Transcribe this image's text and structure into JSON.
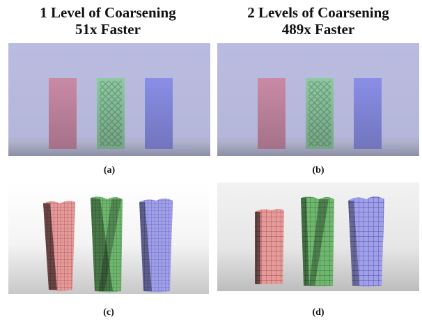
{
  "columns": [
    {
      "heading_line1": "1 Level of Coarsening",
      "heading_line2": "51x Faster"
    },
    {
      "heading_line1": "2 Levels of Coarsening",
      "heading_line2": "489x Faster"
    }
  ],
  "captions": {
    "a": "(a)",
    "b": "(b)",
    "c": "(c)",
    "d": "(d)"
  },
  "colors": {
    "backdrop": "#b9bade",
    "floor": "#aeb0ca",
    "pink_block": "#c98aa6",
    "green_block": "#8ec9a2",
    "blue_block": "#8a8ee6",
    "mesh_red": "#e79a9a",
    "mesh_green": "#6fb66f",
    "mesh_blue": "#9f9fea"
  }
}
